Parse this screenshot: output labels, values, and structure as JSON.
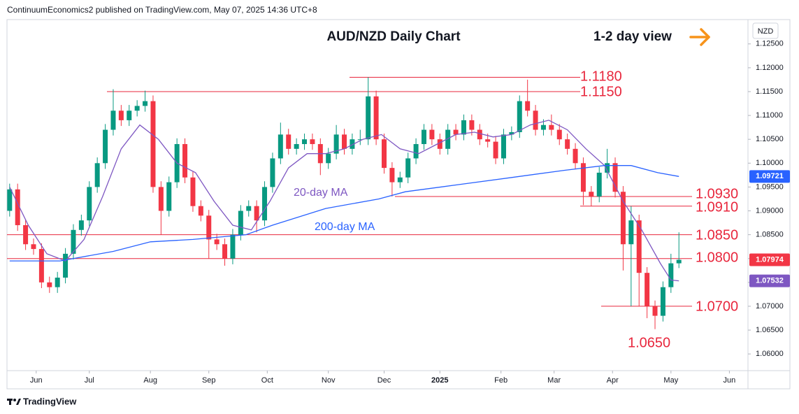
{
  "header": {
    "publisher": "ContinuumEconomics2 published on TradingView.com, May 07, 2025 14:36 UTC+8",
    "brand": "TradingView"
  },
  "chart_data": {
    "type": "candlestick",
    "title": "AUD/NZD Daily Chart",
    "view": "1-2 day view",
    "currency": "NZD",
    "up_color": "#089981",
    "down_color": "#f23645",
    "level_color": "#e8273d",
    "x": [
      1,
      4,
      7,
      10,
      13,
      16,
      19,
      22,
      25,
      28,
      31,
      34,
      37,
      40,
      43,
      46,
      49,
      52,
      55,
      58,
      61,
      64,
      67,
      70,
      73,
      76,
      79,
      82,
      85,
      88,
      91,
      94,
      97,
      100,
      103,
      106,
      109,
      112,
      115,
      118,
      121,
      124,
      127,
      130,
      133,
      136,
      139,
      142,
      145,
      148,
      151,
      154,
      157,
      160,
      163,
      166,
      169,
      172,
      175,
      178,
      181,
      184,
      187,
      190,
      193,
      196,
      199,
      202,
      205,
      208,
      211,
      214,
      217,
      220,
      223,
      226,
      229,
      232,
      235,
      238,
      241,
      244,
      247,
      250,
      253
    ],
    "open": [
      1.09,
      1.0945,
      1.087,
      1.083,
      1.082,
      1.075,
      1.074,
      1.076,
      1.081,
      1.086,
      1.088,
      1.095,
      1.1,
      1.107,
      1.111,
      1.109,
      1.111,
      1.112,
      1.113,
      1.095,
      1.09,
      1.096,
      1.104,
      1.097,
      1.091,
      1.089,
      1.084,
      1.083,
      1.08,
      1.085,
      1.09,
      1.091,
      1.088,
      1.095,
      1.101,
      1.106,
      1.103,
      1.104,
      1.105,
      1.104,
      1.1,
      1.102,
      1.106,
      1.103,
      1.105,
      1.105,
      1.114,
      1.105,
      1.099,
      1.096,
      1.097,
      1.101,
      1.104,
      1.107,
      1.105,
      1.103,
      1.107,
      1.106,
      1.109,
      1.107,
      1.105,
      1.1045,
      1.101,
      1.106,
      1.1065,
      1.113,
      1.111,
      1.107,
      1.108,
      1.107,
      1.105,
      1.103,
      1.1,
      1.094,
      1.093,
      1.098,
      1.1,
      1.094,
      1.083,
      1.088,
      1.077,
      1.07,
      1.068,
      1.074,
      1.079
    ],
    "high": [
      1.0957,
      1.0957,
      1.0882,
      1.0842,
      1.0832,
      1.0762,
      1.0772,
      1.0822,
      1.0872,
      1.0892,
      1.0962,
      1.1012,
      1.1082,
      1.1155,
      1.1122,
      1.1122,
      1.1132,
      1.1152,
      1.1142,
      1.0962,
      1.0972,
      1.1052,
      1.1052,
      1.0982,
      1.0922,
      1.0902,
      1.0852,
      1.0842,
      1.0862,
      1.0912,
      1.0922,
      1.0922,
      1.0962,
      1.1022,
      1.1085,
      1.1072,
      1.1052,
      1.1062,
      1.1062,
      1.1052,
      1.1032,
      1.108,
      1.1072,
      1.1062,
      1.107,
      1.118,
      1.1152,
      1.1062,
      1.1002,
      1.0982,
      1.1022,
      1.1052,
      1.1082,
      1.1082,
      1.1062,
      1.1082,
      1.1082,
      1.1102,
      1.1102,
      1.1082,
      1.1062,
      1.1057,
      1.1072,
      1.1077,
      1.1142,
      1.1175,
      1.1122,
      1.1092,
      1.1102,
      1.1082,
      1.1062,
      1.1042,
      1.1012,
      1.0952,
      1.0992,
      1.103,
      1.1012,
      1.0952,
      1.091,
      1.0892,
      1.0782,
      1.0712,
      1.0752,
      1.081,
      1.0855
    ],
    "low": [
      1.0888,
      1.0858,
      1.0818,
      1.0808,
      1.0738,
      1.0728,
      1.0728,
      1.0748,
      1.0798,
      1.0848,
      1.0868,
      1.0938,
      1.0988,
      1.1058,
      1.1078,
      1.1078,
      1.1098,
      1.1108,
      1.0938,
      1.085,
      1.0888,
      1.0948,
      1.0958,
      1.0898,
      1.0878,
      1.08,
      1.0818,
      1.0785,
      1.0788,
      1.0838,
      1.0888,
      1.0855,
      1.0868,
      1.0938,
      1.0998,
      1.1018,
      1.1018,
      1.1028,
      1.1028,
      1.0975,
      1.0988,
      1.1008,
      1.1018,
      1.1018,
      1.1038,
      1.1038,
      1.1038,
      1.0978,
      1.093,
      1.0948,
      1.0958,
      1.0998,
      1.1028,
      1.1038,
      1.1018,
      1.1018,
      1.1048,
      1.1048,
      1.1058,
      1.1038,
      1.1033,
      1.0998,
      1.0998,
      1.1048,
      1.1053,
      1.1098,
      1.1058,
      1.1058,
      1.1058,
      1.1038,
      1.1018,
      1.0988,
      1.0912,
      1.091,
      1.0918,
      1.0968,
      1.0928,
      1.0775,
      1.07,
      1.07,
      1.0675,
      1.0652,
      1.0668,
      1.0728,
      1.078
    ],
    "close": [
      1.0945,
      1.087,
      1.083,
      1.082,
      1.075,
      1.074,
      1.076,
      1.081,
      1.086,
      1.088,
      1.095,
      1.1,
      1.107,
      1.111,
      1.109,
      1.111,
      1.112,
      1.113,
      1.095,
      1.09,
      1.096,
      1.104,
      1.097,
      1.091,
      1.089,
      1.084,
      1.083,
      1.08,
      1.085,
      1.09,
      1.091,
      1.088,
      1.095,
      1.101,
      1.106,
      1.103,
      1.104,
      1.105,
      1.104,
      1.1,
      1.102,
      1.106,
      1.103,
      1.105,
      1.105,
      1.114,
      1.105,
      1.099,
      1.096,
      1.097,
      1.101,
      1.104,
      1.107,
      1.105,
      1.103,
      1.107,
      1.106,
      1.109,
      1.107,
      1.105,
      1.1045,
      1.101,
      1.106,
      1.1065,
      1.113,
      1.111,
      1.107,
      1.108,
      1.107,
      1.105,
      1.103,
      1.1,
      1.094,
      1.093,
      1.098,
      1.1,
      1.094,
      1.083,
      1.088,
      1.077,
      1.07,
      1.068,
      1.074,
      1.079,
      1.07974
    ],
    "lines": [
      {
        "name": "20-day MA",
        "color": "#7e57c2",
        "x": [
          1,
          8,
          15,
          22,
          29,
          36,
          43,
          50,
          57,
          64,
          71,
          78,
          85,
          92,
          99,
          106,
          113,
          120,
          127,
          134,
          141,
          148,
          155,
          162,
          169,
          176,
          183,
          190,
          197,
          204,
          211,
          218,
          225,
          232,
          239,
          246,
          250,
          253
        ],
        "values": [
          1.095,
          1.087,
          1.081,
          1.0795,
          1.084,
          1.093,
          1.103,
          1.108,
          1.105,
          1.1,
          1.098,
          1.092,
          1.087,
          1.086,
          1.092,
          1.099,
          1.102,
          1.102,
          1.103,
          1.105,
          1.106,
          1.103,
          1.102,
          1.104,
          1.106,
          1.1065,
          1.1055,
          1.106,
          1.108,
          1.109,
          1.107,
          1.103,
          1.0995,
          1.092,
          1.086,
          1.079,
          1.0755,
          1.07532
        ]
      },
      {
        "name": "200-day MA",
        "color": "#2962ff",
        "x": [
          1,
          20,
          40,
          54,
          70,
          90,
          100,
          120,
          140,
          150,
          170,
          190,
          210,
          225,
          235,
          245,
          253
        ],
        "values": [
          1.0795,
          1.0795,
          1.0815,
          1.0835,
          1.084,
          1.085,
          1.087,
          1.0905,
          1.0925,
          1.094,
          1.0955,
          1.097,
          1.0985,
          1.0995,
          1.0995,
          1.098,
          1.09721
        ]
      }
    ],
    "levels": [
      {
        "value": 1.118,
        "label": "1.1180"
      },
      {
        "value": 1.115,
        "label": "1.1150"
      },
      {
        "value": 1.093,
        "label": "1.0930"
      },
      {
        "value": 1.091,
        "label": "1.0910"
      },
      {
        "value": 1.085,
        "label": "1.0850"
      },
      {
        "value": 1.08,
        "label": "1.0800"
      },
      {
        "value": 1.07,
        "label": "1.0700"
      },
      {
        "value": 1.065,
        "label": "1.0650"
      }
    ],
    "xlim": [
      0,
      279
    ],
    "ylim": [
      1.0565,
      1.1301
    ],
    "xticks": [
      {
        "value": 11,
        "label": "Jun"
      },
      {
        "value": 31,
        "label": "Jul"
      },
      {
        "value": 54,
        "label": "Aug"
      },
      {
        "value": 76,
        "label": "Sep"
      },
      {
        "value": 98,
        "label": "Oct"
      },
      {
        "value": 121,
        "label": "Nov"
      },
      {
        "value": 142,
        "label": "Dec"
      },
      {
        "value": 163,
        "label": "2025"
      },
      {
        "value": 186,
        "label": "Feb"
      },
      {
        "value": 206,
        "label": "Mar"
      },
      {
        "value": 228,
        "label": "Apr"
      },
      {
        "value": 250,
        "label": "May"
      },
      {
        "value": 272,
        "label": "Jun"
      }
    ],
    "yticks": [
      {
        "value": 1.06,
        "label": "1.06000"
      },
      {
        "value": 1.065,
        "label": "1.06500"
      },
      {
        "value": 1.07,
        "label": "1.07000"
      },
      {
        "value": 1.075,
        "label": "1.07500"
      },
      {
        "value": 1.08,
        "label": "1.08000"
      },
      {
        "value": 1.085,
        "label": "1.08500"
      },
      {
        "value": 1.09,
        "label": "1.09000"
      },
      {
        "value": 1.095,
        "label": "1.09500"
      },
      {
        "value": 1.1,
        "label": "1.10000"
      },
      {
        "value": 1.105,
        "label": "1.10500"
      },
      {
        "value": 1.11,
        "label": "1.11000"
      },
      {
        "value": 1.115,
        "label": "1.11500"
      },
      {
        "value": 1.12,
        "label": "1.12000"
      },
      {
        "value": 1.125,
        "label": "1.12500"
      }
    ]
  }
}
